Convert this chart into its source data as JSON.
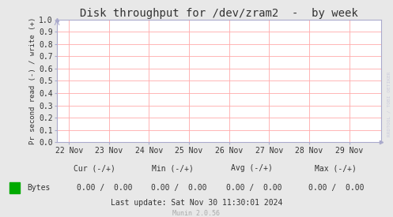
{
  "title": "Disk throughput for /dev/zram2  -  by week",
  "ylabel": "Pr second read (-) / write (+)",
  "background_color": "#e8e8e8",
  "plot_background_color": "#ffffff",
  "grid_color": "#ffaaaa",
  "axis_color": "#aaaacc",
  "title_color": "#333333",
  "ylim": [
    0.0,
    1.0
  ],
  "yticks": [
    0.0,
    0.1,
    0.2,
    0.3,
    0.4,
    0.5,
    0.6,
    0.7,
    0.8,
    0.9,
    1.0
  ],
  "xtick_labels": [
    "22 Nov",
    "23 Nov",
    "24 Nov",
    "25 Nov",
    "26 Nov",
    "27 Nov",
    "28 Nov",
    "29 Nov"
  ],
  "xtick_positions": [
    0,
    1,
    2,
    3,
    4,
    5,
    6,
    7
  ],
  "xlim": [
    -0.3,
    7.8
  ],
  "legend_label": "Bytes",
  "legend_color": "#00aa00",
  "watermark": "RRDTOOL / TOBI OETIKER",
  "font_color": "#333333",
  "tick_font_size": 7,
  "title_font_size": 10,
  "ylabel_font_size": 6.5,
  "footer_font_size": 7,
  "munin_font_size": 6,
  "munin_color": "#aaaaaa",
  "watermark_color": "#ccccdd"
}
